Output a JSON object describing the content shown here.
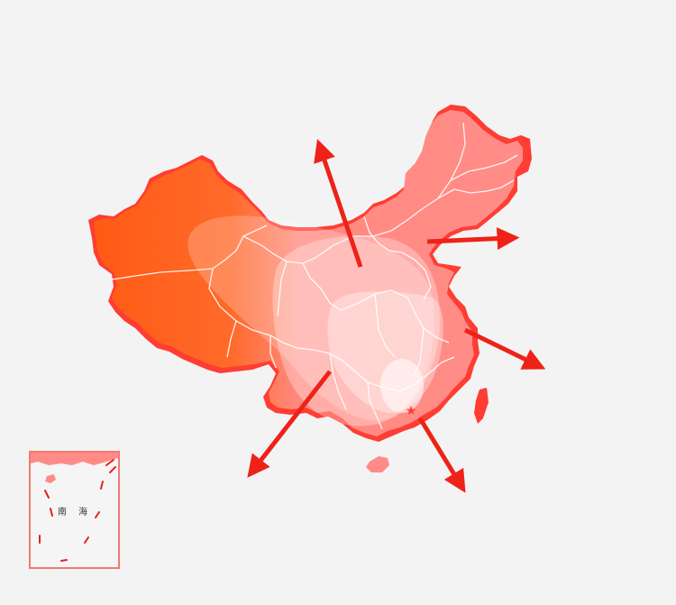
{
  "map": {
    "colors": {
      "background": "#f3f3f3",
      "west_region": "#ff5a1a",
      "main_fill": "#ff8b86",
      "outline": "#ff3d32",
      "borders": "#ffffff",
      "arrows": "#ee2218",
      "glow": "#ffffff"
    },
    "marker": {
      "symbol": "★",
      "icon": "star-icon",
      "color": "#ff3d32"
    },
    "arrows": [
      {
        "id": "north",
        "direction": "north-northwest"
      },
      {
        "id": "northeast",
        "direction": "east"
      },
      {
        "id": "east",
        "direction": "southeast"
      },
      {
        "id": "southwest",
        "direction": "southwest"
      },
      {
        "id": "south",
        "direction": "south-southeast"
      }
    ]
  },
  "inset": {
    "title_char_1": "南",
    "title_char_2": "海",
    "border_color": "#f07a72",
    "dash_color": "#e52020"
  }
}
